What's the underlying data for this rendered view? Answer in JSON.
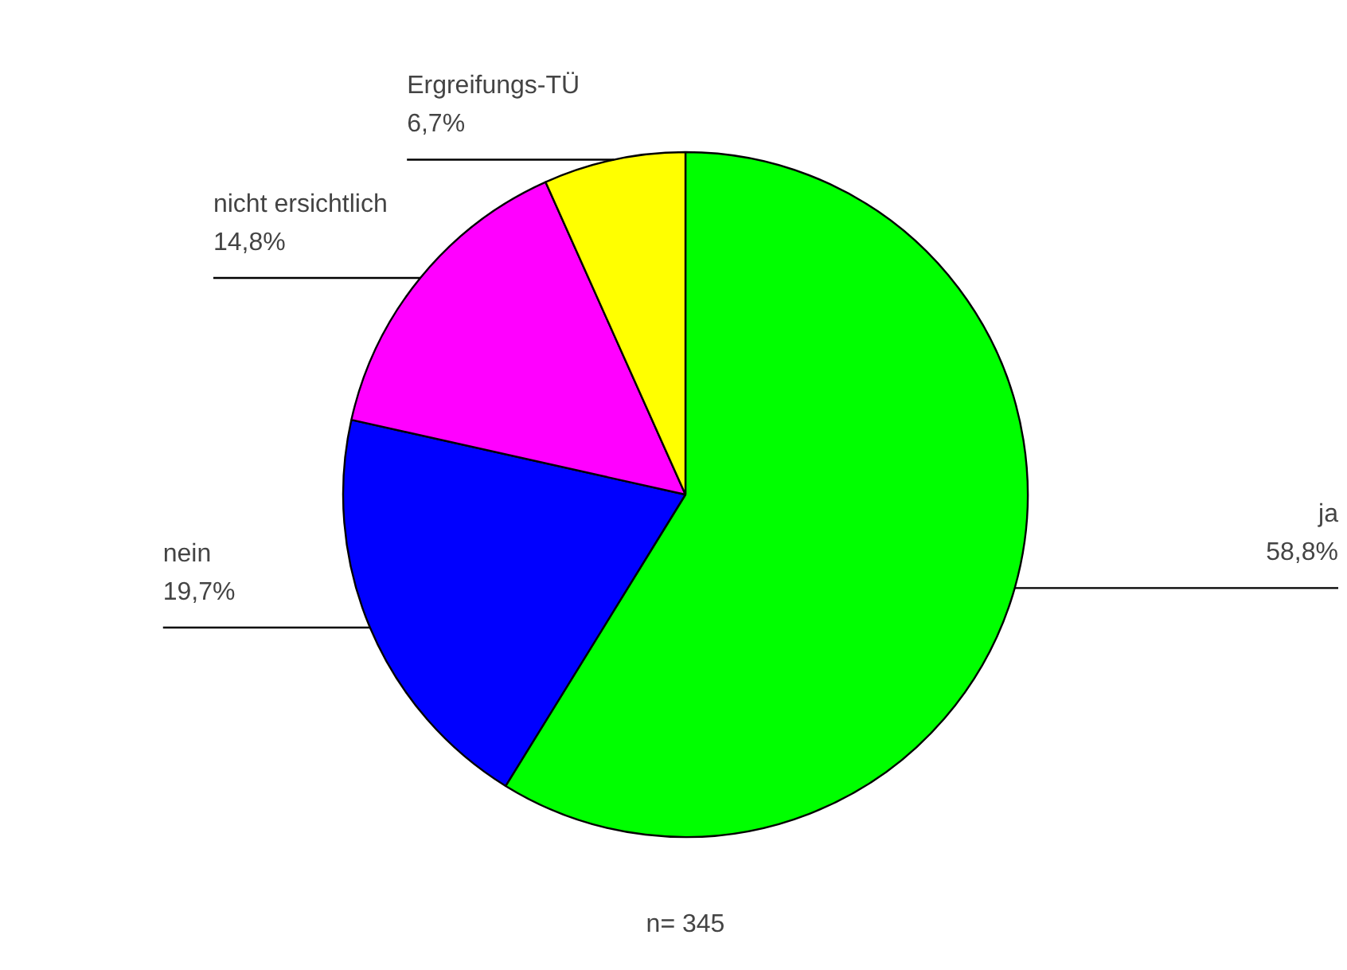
{
  "chart_data": {
    "type": "pie",
    "categories": [
      "ja",
      "nein",
      "nicht ersichtlich",
      "Ergreifungs-TÜ"
    ],
    "values": [
      58.8,
      19.7,
      14.8,
      6.7
    ],
    "colors": [
      "#00ff00",
      "#0000ff",
      "#ff00ff",
      "#ffff00"
    ],
    "value_labels": [
      "58,8%",
      "19,7%",
      "14,8%",
      "6,7%"
    ],
    "annotations": [
      "n= 345"
    ]
  }
}
